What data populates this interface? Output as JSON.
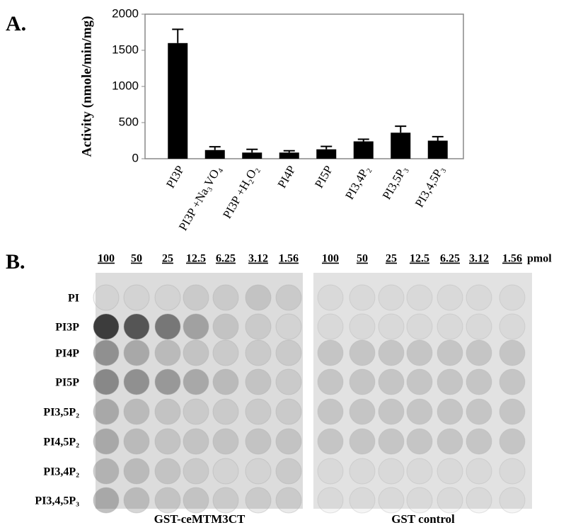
{
  "panel_labels": [
    "A.",
    "B."
  ],
  "chart_data": {
    "type": "bar",
    "y_label": "Activity (nmole/min/mg)",
    "categories": [
      "PI3P",
      "PI3P +Na₃VO₄",
      "PI3P +H₂O₂",
      "PI4P",
      "PI5P",
      "PI3,4P₂",
      "PI3,5P₃",
      "PI3,4,5P₃"
    ],
    "values": [
      1600,
      120,
      85,
      85,
      130,
      240,
      360,
      250
    ],
    "errors": [
      190,
      45,
      45,
      25,
      40,
      30,
      90,
      55
    ],
    "color": "#000000",
    "ylim": [
      0,
      2000
    ],
    "yticks": [
      0,
      500,
      1000,
      1500,
      2000
    ]
  },
  "blot": {
    "amounts": [
      "100",
      "50",
      "25",
      "12.5",
      "6.25",
      "3.12",
      "1.56"
    ],
    "unit": "pmol",
    "lipids": [
      "PI",
      "PI3P",
      "PI4P",
      "PI5P",
      "PI3,5P₂",
      "PI4,5P₂",
      "PI3,4P₂",
      "PI3,4,5P₃"
    ],
    "panels": [
      "GST-ceMTM3CT",
      "GST control"
    ]
  }
}
